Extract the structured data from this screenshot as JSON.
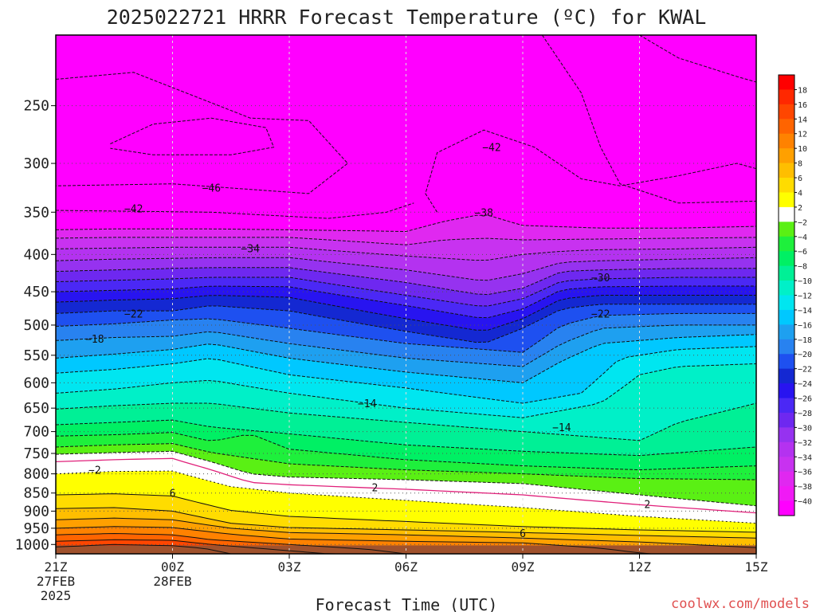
{
  "chart_data": {
    "type": "heatmap",
    "title": "2025022721 HRRR Forecast Temperature (ºC) for KWAL",
    "xlabel": "Forecast Time (UTC)",
    "ylabel": "",
    "credit": "coolwx.com/models",
    "x_ticks": [
      {
        "hour": 0,
        "label": "21Z",
        "sub": [
          "27FEB",
          "2025"
        ]
      },
      {
        "hour": 3,
        "label": "00Z",
        "sub": [
          "28FEB"
        ]
      },
      {
        "hour": 6,
        "label": "03Z",
        "sub": []
      },
      {
        "hour": 9,
        "label": "06Z",
        "sub": []
      },
      {
        "hour": 12,
        "label": "09Z",
        "sub": []
      },
      {
        "hour": 15,
        "label": "12Z",
        "sub": []
      },
      {
        "hour": 18,
        "label": "15Z",
        "sub": []
      }
    ],
    "xlim": [
      0,
      18
    ],
    "y_ticks": [
      250,
      300,
      350,
      400,
      450,
      500,
      550,
      600,
      650,
      700,
      750,
      800,
      850,
      900,
      950,
      1000
    ],
    "ylim": [
      1030,
      200
    ],
    "y_scale": "log-pressure (hPa)",
    "grid": true,
    "colorbar": {
      "levels": [
        -40,
        -38,
        -36,
        -34,
        -32,
        -30,
        -28,
        -26,
        -24,
        -22,
        -20,
        -18,
        -16,
        -14,
        -12,
        -10,
        -8,
        -6,
        -4,
        -2,
        2,
        4,
        6,
        8,
        10,
        12,
        14,
        16,
        18
      ],
      "colors": [
        "#ff00ff",
        "#f01af5",
        "#e028f0",
        "#c832f0",
        "#b432f0",
        "#9632f0",
        "#6e28f0",
        "#4b28f5",
        "#2814f0",
        "#1428d2",
        "#1e50f0",
        "#2882f0",
        "#1ea0f0",
        "#00c8ff",
        "#00e6f0",
        "#00f0c8",
        "#00f096",
        "#00f064",
        "#1ef03c",
        "#5af014",
        "#ffffff",
        "#ffff00",
        "#ffdc00",
        "#ffbe00",
        "#ffa000",
        "#ff8200",
        "#ff6400",
        "#ff4600",
        "#ff2800",
        "#ff0000"
      ]
    },
    "series": [
      {
        "value": 18,
        "x": [
          0,
          1.2,
          3,
          4,
          6,
          9,
          12,
          15,
          18
        ],
        "y": [
          1030,
          1030,
          1030,
          1030,
          1030,
          1030,
          1030,
          1030,
          1030
        ]
      },
      {
        "value": 16,
        "x": [
          0,
          1.5,
          3,
          3.8,
          4.5
        ],
        "y": [
          1008,
          1000,
          1004,
          1012,
          1030
        ]
      },
      {
        "value": 14,
        "x": [
          0,
          1.5,
          3,
          4,
          5.5,
          7
        ],
        "y": [
          990,
          985,
          987,
          1000,
          1015,
          1030
        ]
      },
      {
        "value": 12,
        "x": [
          0,
          1.5,
          3,
          4,
          6,
          8,
          9
        ],
        "y": [
          970,
          966,
          970,
          985,
          1000,
          1015,
          1030
        ]
      },
      {
        "value": 10,
        "x": [
          0,
          1.5,
          3,
          4.5,
          6,
          9,
          12,
          14,
          15.2
        ],
        "y": [
          950,
          945,
          948,
          968,
          983,
          990,
          995,
          1012,
          1030
        ]
      },
      {
        "value": 8,
        "x": [
          0,
          1.5,
          3,
          4.5,
          6,
          9,
          12,
          15,
          18
        ],
        "y": [
          925,
          920,
          925,
          950,
          963,
          970,
          980,
          992,
          1010
        ]
      },
      {
        "value": 6,
        "x": [
          0,
          1.5,
          3,
          4.5,
          6,
          9,
          12,
          15,
          18
        ],
        "y": [
          893,
          890,
          900,
          935,
          948,
          955,
          963,
          972,
          980
        ]
      },
      {
        "value": 4,
        "x": [
          0,
          1.5,
          3,
          4.5,
          6,
          9,
          12,
          15,
          18
        ],
        "y": [
          855,
          852,
          858,
          898,
          915,
          930,
          945,
          955,
          962
        ]
      },
      {
        "value": 2,
        "x": [
          0,
          1.5,
          3,
          4.5,
          6,
          9,
          12,
          15,
          18
        ],
        "y": [
          800,
          794,
          793,
          833,
          850,
          870,
          890,
          915,
          935
        ]
      },
      {
        "value": -2,
        "x": [
          0,
          1.5,
          3,
          4,
          5,
          6,
          9,
          12,
          15,
          18
        ],
        "y": [
          752,
          748,
          745,
          770,
          800,
          808,
          815,
          825,
          855,
          885
        ]
      },
      {
        "value": -4,
        "x": [
          0,
          1.5,
          3,
          4,
          6,
          9,
          12,
          15,
          18
        ],
        "y": [
          735,
          730,
          727,
          748,
          775,
          790,
          800,
          812,
          815
        ]
      },
      {
        "value": -6,
        "x": [
          0,
          1.5,
          3,
          4,
          5,
          6,
          9,
          12,
          15,
          18
        ],
        "y": [
          710,
          707,
          702,
          722,
          705,
          740,
          765,
          780,
          790,
          780
        ]
      },
      {
        "value": -8,
        "x": [
          0,
          1.5,
          3,
          4,
          6,
          9,
          12,
          15,
          18
        ],
        "y": [
          685,
          680,
          675,
          690,
          705,
          730,
          745,
          755,
          735
        ]
      },
      {
        "value": -10,
        "x": [
          0,
          1.5,
          3,
          4,
          6,
          9,
          12,
          15,
          16,
          18
        ],
        "y": [
          652,
          645,
          640,
          640,
          660,
          680,
          700,
          720,
          680,
          640
        ]
      },
      {
        "value": -12,
        "x": [
          0,
          1.5,
          3,
          4,
          6,
          9,
          12,
          14,
          15,
          16,
          18
        ],
        "y": [
          620,
          612,
          600,
          595,
          620,
          650,
          670,
          640,
          585,
          570,
          565
        ]
      },
      {
        "value": -14,
        "x": [
          0,
          1.5,
          3,
          4,
          6,
          9,
          12,
          13.5,
          14.5,
          16,
          18
        ],
        "y": [
          582,
          575,
          565,
          555,
          585,
          610,
          640,
          620,
          555,
          540,
          535
        ]
      },
      {
        "value": -16,
        "x": [
          0,
          1.5,
          3,
          4,
          6,
          9,
          12,
          13,
          14,
          16,
          18
        ],
        "y": [
          555,
          548,
          540,
          530,
          555,
          580,
          600,
          560,
          530,
          520,
          515
        ]
      },
      {
        "value": -18,
        "x": [
          0,
          1.5,
          3,
          4,
          6,
          9,
          12,
          13,
          14,
          16,
          18
        ],
        "y": [
          525,
          520,
          518,
          510,
          530,
          555,
          570,
          530,
          505,
          500,
          500
        ]
      },
      {
        "value": -20,
        "x": [
          0,
          1.5,
          3,
          4,
          6,
          9,
          12,
          13,
          14,
          16,
          18
        ],
        "y": [
          502,
          498,
          492,
          490,
          505,
          530,
          545,
          500,
          485,
          482,
          482
        ]
      },
      {
        "value": -22,
        "x": [
          0,
          1.5,
          3,
          4,
          6,
          9,
          11,
          12,
          13,
          14,
          16,
          18
        ],
        "y": [
          482,
          478,
          478,
          470,
          478,
          510,
          530,
          505,
          475,
          468,
          468,
          468
        ]
      },
      {
        "value": -24,
        "x": [
          0,
          1.5,
          3,
          4,
          6,
          9,
          11,
          12,
          13,
          14,
          16,
          18
        ],
        "y": [
          465,
          462,
          460,
          455,
          458,
          490,
          510,
          490,
          460,
          455,
          455,
          455
        ]
      },
      {
        "value": -26,
        "x": [
          0,
          1.5,
          3,
          4,
          6,
          9,
          11,
          12,
          13,
          14,
          16,
          18
        ],
        "y": [
          450,
          448,
          446,
          442,
          443,
          470,
          490,
          475,
          447,
          443,
          442,
          442
        ]
      },
      {
        "value": -28,
        "x": [
          0,
          1.5,
          3,
          4,
          6,
          9,
          11,
          12,
          13,
          14,
          16,
          18
        ],
        "y": [
          436,
          434,
          432,
          430,
          430,
          455,
          472,
          460,
          435,
          432,
          430,
          430
        ]
      },
      {
        "value": -30,
        "x": [
          0,
          1.5,
          3,
          4,
          6,
          9,
          11,
          12,
          13,
          14,
          16,
          18
        ],
        "y": [
          422,
          420,
          418,
          417,
          417,
          437,
          455,
          445,
          422,
          420,
          418,
          418
        ]
      },
      {
        "value": -32,
        "x": [
          0,
          1.5,
          3,
          4,
          6,
          9,
          11,
          12,
          13,
          14,
          16,
          18
        ],
        "y": [
          408,
          406,
          405,
          404,
          404,
          420,
          435,
          425,
          410,
          408,
          406,
          404
        ]
      },
      {
        "value": -34,
        "x": [
          0,
          1.5,
          3,
          4,
          6,
          9,
          11,
          12,
          13,
          14,
          16,
          18
        ],
        "y": [
          393,
          392,
          391,
          391,
          391,
          402,
          408,
          400,
          396,
          394,
          393,
          391
        ]
      },
      {
        "value": -36,
        "x": [
          0,
          1.5,
          3,
          4,
          6,
          9,
          10,
          11,
          12,
          14,
          16,
          18
        ],
        "y": [
          380,
          379,
          379,
          379,
          379,
          388,
          382,
          380,
          382,
          381,
          380,
          379
        ]
      },
      {
        "value": -38,
        "x": [
          0,
          1.5,
          3,
          4,
          6,
          9,
          10,
          11,
          12,
          14,
          16,
          18
        ],
        "y": [
          370,
          369,
          369,
          369,
          370,
          372,
          360,
          352,
          365,
          368,
          368,
          366
        ]
      }
    ],
    "annotations": [
      {
        "text": "-46",
        "x": 4.0,
        "y": 324
      },
      {
        "text": "-42",
        "x": 2.0,
        "y": 346
      },
      {
        "text": "-42",
        "x": 11.2,
        "y": 285
      },
      {
        "text": "-38",
        "x": 11.0,
        "y": 350
      },
      {
        "text": "-34",
        "x": 5.0,
        "y": 392
      },
      {
        "text": "-30",
        "x": 14.0,
        "y": 430
      },
      {
        "text": "-22",
        "x": 2.0,
        "y": 482
      },
      {
        "text": "-22",
        "x": 14.0,
        "y": 482
      },
      {
        "text": "-18",
        "x": 1.0,
        "y": 522
      },
      {
        "text": "-14",
        "x": 8.0,
        "y": 640
      },
      {
        "text": "-14",
        "x": 13.0,
        "y": 690
      },
      {
        "text": "-2",
        "x": 1.0,
        "y": 790
      },
      {
        "text": "2",
        "x": 8.2,
        "y": 835
      },
      {
        "text": "2",
        "x": 15.2,
        "y": 880
      },
      {
        "text": "6",
        "x": 3.0,
        "y": 850
      },
      {
        "text": "6",
        "x": 12.0,
        "y": 965
      }
    ]
  }
}
